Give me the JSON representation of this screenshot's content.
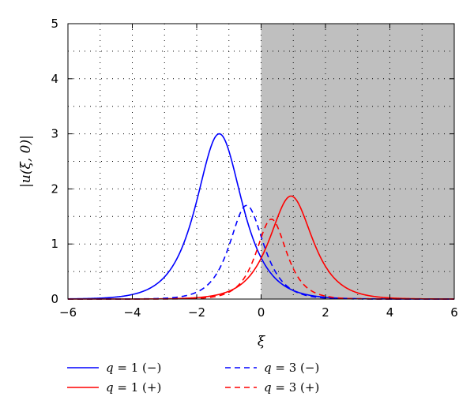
{
  "chart_data": {
    "type": "line",
    "xlabel": "ξ",
    "ylabel": "|u(ξ, 0)|",
    "xlim": [
      -6,
      6
    ],
    "ylim": [
      0,
      5
    ],
    "xticks": [
      -6,
      -4,
      -2,
      0,
      2,
      4,
      6
    ],
    "xtick_labels": [
      "−6",
      "−4",
      "−2",
      "0",
      "2",
      "4",
      "6"
    ],
    "yticks": [
      0,
      1,
      2,
      3,
      4,
      5
    ],
    "ytick_labels": [
      "0",
      "1",
      "2",
      "3",
      "4",
      "5"
    ],
    "grid": true,
    "shaded_region": {
      "x_from": 0,
      "x_to": 6,
      "color": "#bfbfbf"
    },
    "legend_position": "bottom",
    "series": [
      {
        "name": "q = 1 (−)",
        "color": "#0000ff",
        "dash": "solid",
        "peak": 3.0,
        "center": -1.3,
        "width": 0.63
      },
      {
        "name": "q = 1 (+)",
        "color": "#ff0000",
        "dash": "solid",
        "peak": 1.87,
        "center": 0.93,
        "width": 0.59
      },
      {
        "name": "q = 3 (−)",
        "color": "#0000ff",
        "dash": "dashed",
        "peak": 1.7,
        "center": -0.45,
        "width": 0.47
      },
      {
        "name": "q = 3 (+)",
        "color": "#ff0000",
        "dash": "dashed",
        "peak": 1.45,
        "center": 0.32,
        "width": 0.42
      }
    ],
    "legend_text": {
      "q1_minus": {
        "var": "q",
        "rest": " = 1 (−)"
      },
      "q1_plus": {
        "var": "q",
        "rest": " = 1 (+)"
      },
      "q3_minus": {
        "var": "q",
        "rest": " = 3 (−)"
      },
      "q3_plus": {
        "var": "q",
        "rest": " = 3 (+)"
      }
    }
  }
}
